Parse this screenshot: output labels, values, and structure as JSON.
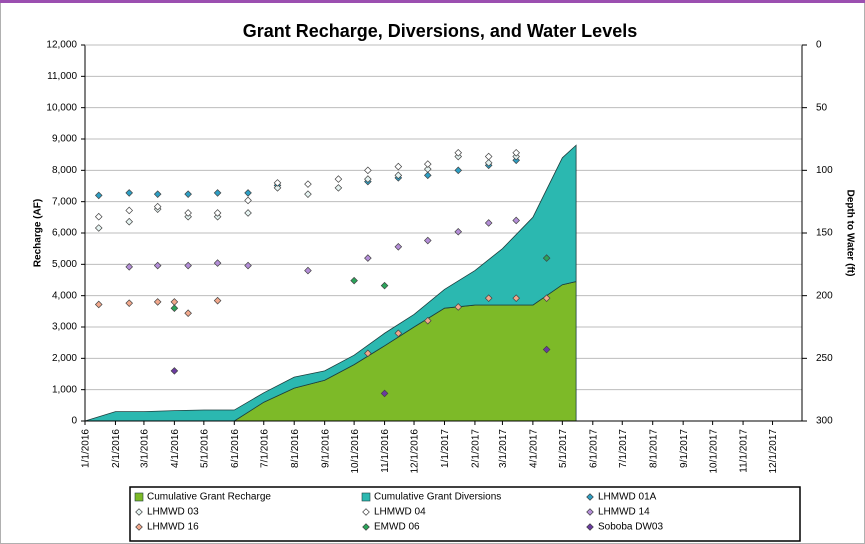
{
  "chart_data": {
    "type": "area",
    "title": "Grant Recharge, Diversions, and Water Levels",
    "ylabel": "Recharge (AF)",
    "y2label": "Depth to Water (ft)",
    "xlim": [
      "1/1/2016",
      "12/31/2017"
    ],
    "xticks": [
      "1/1/2016",
      "2/1/2016",
      "3/1/2016",
      "4/1/2016",
      "5/1/2016",
      "6/1/2016",
      "7/1/2016",
      "8/1/2016",
      "9/1/2016",
      "10/1/2016",
      "11/1/2016",
      "12/1/2016",
      "1/1/2017",
      "2/1/2017",
      "3/1/2017",
      "4/1/2017",
      "5/1/2017",
      "6/1/2017",
      "7/1/2017",
      "8/1/2017",
      "9/1/2017",
      "10/1/2017",
      "11/1/2017",
      "12/1/2017"
    ],
    "ylim": [
      0,
      12000
    ],
    "yticks": [
      0,
      {
        "value": 1000,
        "label": "1,000"
      },
      {
        "value": 2000,
        "label": "2,000"
      },
      {
        "value": 3000,
        "label": "3,000"
      },
      {
        "value": 4000,
        "label": "4,000"
      },
      {
        "value": 5000,
        "label": "5,000"
      },
      {
        "value": 6000,
        "label": "6,000"
      },
      {
        "value": 7000,
        "label": "7,000"
      },
      {
        "value": 8000,
        "label": "8,000"
      },
      {
        "value": 9000,
        "label": "9,000"
      },
      {
        "value": 10000,
        "label": "10,000"
      },
      {
        "value": 11000,
        "label": "11,000"
      },
      {
        "value": 12000,
        "label": "12,000"
      }
    ],
    "y2lim": [
      0,
      300
    ],
    "y2ticks": [
      0,
      50,
      100,
      150,
      200,
      250,
      300
    ],
    "y2_reversed": true,
    "grid": true,
    "legend": "bottom",
    "x": [
      "1/1/2016",
      "2/1/2016",
      "3/1/2016",
      "4/1/2016",
      "5/1/2016",
      "6/1/2016",
      "7/1/2016",
      "8/1/2016",
      "9/1/2016",
      "10/1/2016",
      "11/1/2016",
      "12/1/2016",
      "1/1/2017",
      "2/1/2017",
      "3/1/2017",
      "4/1/2017",
      "5/1/2017",
      "5/15/2017"
    ],
    "series": [
      {
        "name": "Cumulative Grant Recharge",
        "color": "#7dba28",
        "values": [
          0,
          0,
          0,
          0,
          0,
          0,
          600,
          1050,
          1300,
          1800,
          2400,
          3000,
          3600,
          3700,
          3700,
          3700,
          4350,
          4450
        ]
      },
      {
        "name": "Cumulative Grant Diversions",
        "color": "#2bb8b0",
        "values": [
          0,
          300,
          300,
          330,
          350,
          350,
          300,
          350,
          300,
          300,
          400,
          400,
          600,
          1100,
          1800,
          2800,
          4050,
          4350
        ]
      }
    ],
    "points": [
      {
        "name": "LHMWD 01A",
        "type": "scatter",
        "axis": "y2",
        "color": "#2e9fc4",
        "x": [
          "1/15/2016",
          "2/15/2016",
          "3/15/2016",
          "4/15/2016",
          "5/15/2016",
          "6/15/2016",
          "7/15/2016",
          "10/15/2016",
          "11/15/2016",
          "12/15/2016",
          "1/15/2017",
          "2/15/2017",
          "3/15/2017"
        ],
        "values": [
          120,
          118,
          119,
          119,
          118,
          118,
          112,
          109,
          106,
          104,
          100,
          96,
          92
        ]
      },
      {
        "name": "LHMWD 03",
        "type": "scatter",
        "axis": "y2",
        "color": "#e6f4f2",
        "x": [
          "1/15/2016",
          "2/15/2016",
          "3/15/2016",
          "4/15/2016",
          "5/15/2016",
          "6/15/2016",
          "7/15/2016",
          "8/15/2016",
          "9/15/2016",
          "10/15/2016",
          "11/15/2016",
          "12/15/2016",
          "1/15/2017",
          "2/15/2017",
          "3/15/2017"
        ],
        "values": [
          146,
          141,
          131,
          137,
          137,
          134,
          114,
          119,
          114,
          107,
          104,
          99,
          89,
          94,
          89
        ]
      },
      {
        "name": "LHMWD 04",
        "type": "scatter",
        "axis": "y2",
        "color": "#ffffff",
        "x": [
          "1/15/2016",
          "2/15/2016",
          "3/15/2016",
          "4/15/2016",
          "5/15/2016",
          "6/15/2016",
          "7/15/2016",
          "8/15/2016",
          "9/15/2016",
          "10/15/2016",
          "11/15/2016",
          "12/15/2016",
          "1/15/2017",
          "2/15/2017",
          "3/15/2017"
        ],
        "values": [
          137,
          132,
          129,
          134,
          134,
          124,
          110,
          111,
          107,
          100,
          97,
          95,
          86,
          89,
          86
        ]
      },
      {
        "name": "LHMWD 14",
        "type": "scatter",
        "axis": "y2",
        "color": "#b48ed8",
        "x": [
          "2/15/2016",
          "3/15/2016",
          "4/15/2016",
          "5/15/2016",
          "6/15/2016",
          "8/15/2016",
          "10/15/2016",
          "11/15/2016",
          "12/15/2016",
          "1/15/2017",
          "2/15/2017",
          "3/15/2017"
        ],
        "values": [
          177,
          176,
          176,
          174,
          176,
          180,
          170,
          161,
          156,
          149,
          142,
          140
        ]
      },
      {
        "name": "LHMWD 16",
        "type": "scatter",
        "axis": "y2",
        "color": "#f2a88c",
        "x": [
          "1/15/2016",
          "2/15/2016",
          "3/15/2016",
          "4/1/2016",
          "4/15/2016",
          "5/15/2016",
          "10/15/2016",
          "11/15/2016",
          "12/15/2016",
          "1/15/2017",
          "2/15/2017",
          "3/15/2017",
          "4/15/2017"
        ],
        "values": [
          207,
          206,
          205,
          205,
          214,
          204,
          246,
          230,
          220,
          209,
          202,
          202,
          202
        ]
      },
      {
        "name": "EMWD 06",
        "type": "scatter",
        "axis": "y2",
        "color": "#2aa45a",
        "x": [
          "4/1/2016",
          "10/1/2016",
          "11/1/2016",
          "4/15/2017"
        ],
        "values": [
          210,
          188,
          192,
          170
        ]
      },
      {
        "name": "Soboba DW03",
        "type": "scatter",
        "axis": "y2",
        "color": "#6a3aa0",
        "x": [
          "4/1/2016",
          "11/1/2016",
          "4/15/2017"
        ],
        "values": [
          260,
          278,
          243
        ]
      }
    ]
  }
}
